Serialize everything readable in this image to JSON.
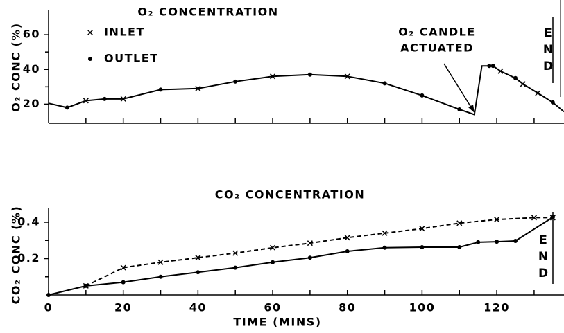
{
  "chart_data": [
    {
      "type": "line",
      "title": "O₂ CONCENTRATION",
      "y_label": "O₂ CONC (%)",
      "ylim": [
        9,
        74
      ],
      "yticks": [
        20,
        40,
        60
      ],
      "yminor": [
        30,
        50
      ],
      "xlim": [
        0,
        138
      ],
      "xminor": [
        10,
        20,
        30,
        40,
        50,
        60,
        70,
        80,
        90,
        100,
        110,
        120,
        130
      ],
      "legend": [
        {
          "label": "INLET",
          "marker": "x"
        },
        {
          "label": "OUTLET",
          "marker": "dot"
        }
      ],
      "annotation": [
        "O₂ CANDLE",
        "ACTUATED"
      ],
      "end_label": "END",
      "series": [
        {
          "color": "#000",
          "style": "solid",
          "x": [
            0,
            5,
            10,
            15,
            20,
            30,
            40,
            50,
            60,
            70,
            80,
            90,
            100,
            110,
            114,
            116,
            118,
            119,
            121,
            125,
            127,
            131,
            135,
            138
          ],
          "values": [
            20.5,
            18,
            22,
            23,
            23,
            28.4,
            29,
            33,
            36,
            37,
            36,
            32,
            25,
            17,
            14,
            42,
            42,
            42,
            39,
            35,
            31.6,
            26.4,
            21,
            15.6
          ],
          "markers": [
            null,
            "dot",
            "x",
            "dot",
            "x",
            "dot",
            "x",
            "dot",
            "x",
            "dot",
            "x",
            "dot",
            "dot",
            "dot",
            null,
            null,
            "dot",
            "dot",
            "x",
            "dot",
            "x",
            "x",
            "dot",
            null
          ]
        }
      ]
    },
    {
      "type": "line",
      "title": "CO₂ CONCENTRATION",
      "y_label": "CO₂ CONC (%)",
      "x_label": "TIME (MINS)",
      "ylim": [
        0,
        0.48
      ],
      "yticks": [
        0.2,
        0.4
      ],
      "yminor": [
        0.1,
        0.3
      ],
      "xlim": [
        0,
        138
      ],
      "xticks": [
        0,
        20,
        40,
        60,
        80,
        100,
        120
      ],
      "xminor": [
        10,
        30,
        50,
        70,
        90,
        110,
        130
      ],
      "end_label": "END",
      "series": [
        {
          "color": "#000",
          "style": "solid",
          "marker": "dot",
          "x": [
            0,
            10,
            20,
            30,
            40,
            50,
            60,
            70,
            80,
            90,
            100,
            110,
            115,
            120,
            125,
            135
          ],
          "values": [
            0,
            0.05,
            0.07,
            0.1,
            0.125,
            0.15,
            0.18,
            0.205,
            0.24,
            0.26,
            0.263,
            0.263,
            0.29,
            0.293,
            0.297,
            0.427
          ]
        },
        {
          "color": "#000",
          "style": "dashed",
          "marker": "x",
          "x": [
            10,
            20,
            30,
            40,
            50,
            60,
            70,
            80,
            90,
            100,
            110,
            120,
            130,
            135
          ],
          "values": [
            0.05,
            0.15,
            0.18,
            0.205,
            0.23,
            0.26,
            0.285,
            0.315,
            0.34,
            0.365,
            0.395,
            0.415,
            0.425,
            0.425
          ]
        }
      ]
    }
  ]
}
